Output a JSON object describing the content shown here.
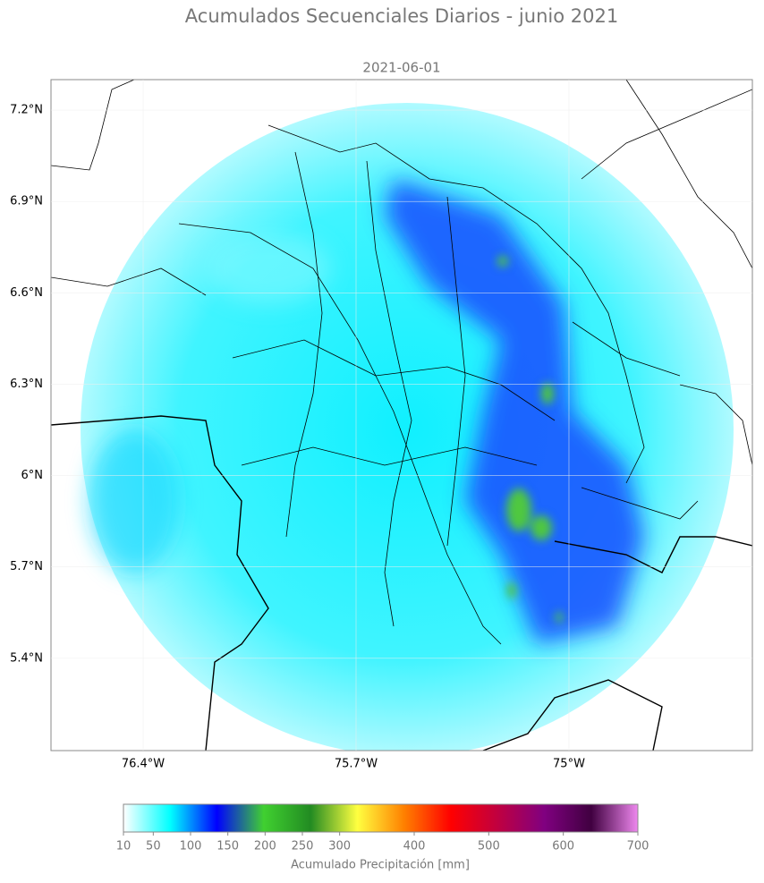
{
  "title": "Acumulados Secuenciales Diarios - junio 2021",
  "map": {
    "subtitle": "2021-06-01",
    "xlim": [
      -76.703,
      -74.397
    ],
    "ylim": [
      5.097,
      7.3
    ],
    "xticks": [
      {
        "value": -76.4,
        "label": "76.4°W"
      },
      {
        "value": -75.7,
        "label": "75.7°W"
      },
      {
        "value": -75,
        "label": "75°W"
      }
    ],
    "yticks": [
      {
        "value": 7.2,
        "label": "7.2°N"
      },
      {
        "value": 6.9,
        "label": "6.9°N"
      },
      {
        "value": 6.6,
        "label": "6.6°N"
      },
      {
        "value": 6.3,
        "label": "6.3°N"
      },
      {
        "value": 6,
        "label": "6°N"
      },
      {
        "value": 5.7,
        "label": "5.7°N"
      },
      {
        "value": 5.4,
        "label": "5.4°N"
      }
    ]
  },
  "colorbar": {
    "label": "Acumulado Precipitación [mm]",
    "lim": [
      10,
      700
    ],
    "ticks": [
      10,
      50,
      100,
      150,
      200,
      250,
      300,
      400,
      500,
      600,
      700
    ],
    "colors": [
      "#ffffff",
      "#00ffff",
      "#0000ff",
      "#40d030",
      "#228b22",
      "#ffff40",
      "#ff8000",
      "#ff0000",
      "#c00040",
      "#800080",
      "#400040",
      "#ee88ee"
    ]
  }
}
